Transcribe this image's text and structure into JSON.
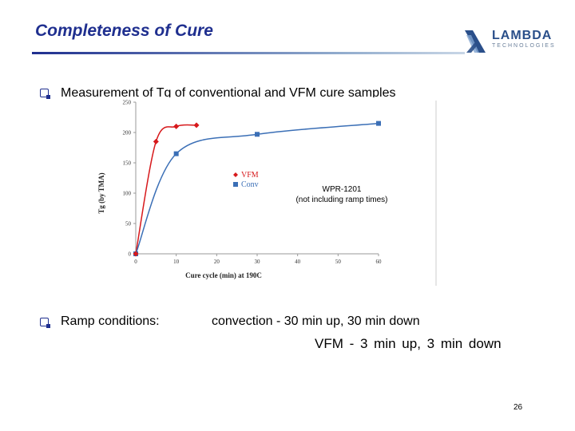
{
  "slide": {
    "title": "Completeness of Cure",
    "page_number": "26"
  },
  "logo": {
    "word": "LAMBDA",
    "sub": "TECHNOLOGIES"
  },
  "bullets": {
    "measurement": "Measurement of Tg of conventional and VFM cure samples",
    "ramp_label": "Ramp conditions:",
    "ramp_convection": "convection - 30 min up, 30 min down",
    "ramp_vfm": "VFM - 3 min up, 3 min down"
  },
  "colors": {
    "title": "#1f2f8f",
    "vfm": "#d7191c",
    "conv": "#3b6fb6"
  },
  "chart_data": {
    "type": "line",
    "title": "",
    "xlabel": "Cure cycle (min) at 190C",
    "ylabel": "Tg (by TMA)",
    "xlim": [
      0,
      60
    ],
    "ylim": [
      0,
      250
    ],
    "x_ticks": [
      "0",
      "10",
      "20",
      "30",
      "40",
      "50",
      "60"
    ],
    "y_ticks": [
      "0",
      "50",
      "100",
      "150",
      "200",
      "250"
    ],
    "annotation": [
      "WPR-1201",
      "(not including ramp times)"
    ],
    "series": [
      {
        "name": "VFM",
        "x": [
          0,
          5,
          10,
          15
        ],
        "y": [
          0,
          185,
          210,
          212
        ]
      },
      {
        "name": "Conv",
        "x": [
          0,
          10,
          30,
          60
        ],
        "y": [
          0,
          165,
          197,
          215
        ]
      }
    ]
  }
}
